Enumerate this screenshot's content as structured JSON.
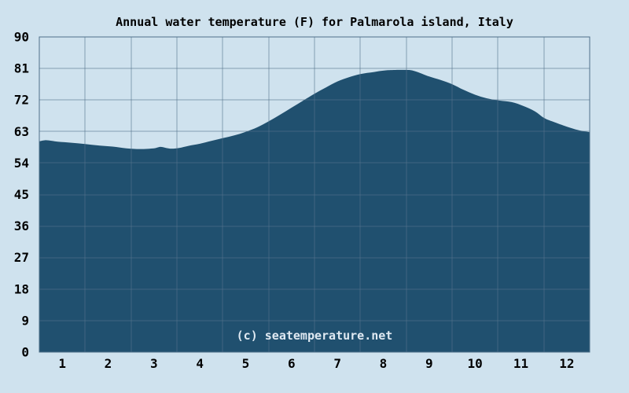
{
  "colors": {
    "background": "#cfe2ee",
    "area_fill": "#20506f",
    "gridline": "#54738a",
    "plot_border": "#4f7089",
    "tick_text": "#000000",
    "title_text": "#000000",
    "watermark_text": "#dfe9f2"
  },
  "chart_data": {
    "type": "area",
    "title": "Annual water temperature (F) for Palmarola island, Italy",
    "xlabel": "",
    "ylabel": "",
    "unit": "F",
    "grid": true,
    "legend": null,
    "watermark": "(c) seatemperature.net",
    "xlim": [
      0,
      12
    ],
    "ylim": [
      0,
      90
    ],
    "x_tick_labels": [
      "1",
      "2",
      "3",
      "4",
      "5",
      "6",
      "7",
      "8",
      "9",
      "10",
      "11",
      "12"
    ],
    "y_ticks": [
      0,
      9,
      18,
      27,
      36,
      45,
      54,
      63,
      72,
      81,
      90
    ],
    "months": [
      "Jan",
      "Feb",
      "Mar",
      "Apr",
      "May",
      "Jun",
      "Jul",
      "Aug",
      "Sep",
      "Oct",
      "Nov",
      "Dec"
    ],
    "monthly_avg_f": [
      60.0,
      58.9,
      58.3,
      59.5,
      62.9,
      69.8,
      77.3,
      80.3,
      78.7,
      73.5,
      70.3,
      64.4
    ],
    "series": [
      {
        "name": "Water temperature (F)",
        "x_unit": "month fraction (0 = Jan 1, 12 = Dec 31)",
        "points": [
          [
            0.0,
            60.2
          ],
          [
            0.15,
            60.5
          ],
          [
            0.4,
            60.1
          ],
          [
            0.7,
            59.8
          ],
          [
            1.0,
            59.4
          ],
          [
            1.3,
            59.0
          ],
          [
            1.6,
            58.7
          ],
          [
            1.9,
            58.2
          ],
          [
            2.2,
            58.0
          ],
          [
            2.5,
            58.2
          ],
          [
            2.65,
            58.6
          ],
          [
            2.85,
            58.1
          ],
          [
            3.05,
            58.3
          ],
          [
            3.25,
            58.9
          ],
          [
            3.5,
            59.5
          ],
          [
            3.75,
            60.3
          ],
          [
            4.0,
            61.1
          ],
          [
            4.25,
            61.9
          ],
          [
            4.5,
            62.9
          ],
          [
            4.75,
            64.2
          ],
          [
            5.0,
            65.9
          ],
          [
            5.25,
            67.8
          ],
          [
            5.5,
            69.8
          ],
          [
            5.75,
            71.8
          ],
          [
            6.0,
            73.8
          ],
          [
            6.25,
            75.6
          ],
          [
            6.5,
            77.3
          ],
          [
            6.75,
            78.5
          ],
          [
            7.0,
            79.4
          ],
          [
            7.3,
            80.0
          ],
          [
            7.6,
            80.5
          ],
          [
            8.0,
            80.6
          ],
          [
            8.2,
            80.2
          ],
          [
            8.5,
            78.7
          ],
          [
            8.75,
            77.7
          ],
          [
            9.0,
            76.5
          ],
          [
            9.25,
            74.9
          ],
          [
            9.5,
            73.5
          ],
          [
            9.75,
            72.5
          ],
          [
            10.0,
            71.9
          ],
          [
            10.3,
            71.4
          ],
          [
            10.55,
            70.3
          ],
          [
            10.8,
            68.8
          ],
          [
            11.0,
            66.9
          ],
          [
            11.2,
            65.8
          ],
          [
            11.5,
            64.4
          ],
          [
            11.75,
            63.4
          ],
          [
            12.0,
            62.8
          ]
        ]
      }
    ]
  }
}
